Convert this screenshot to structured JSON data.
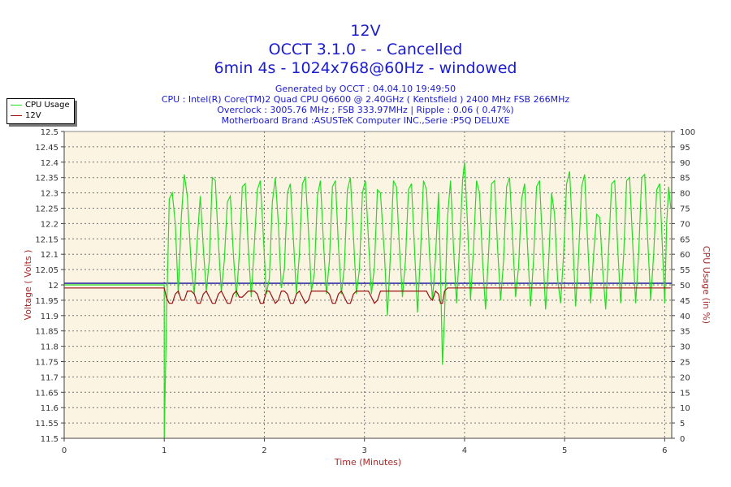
{
  "header": {
    "title": "12V",
    "line2": "OCCT 3.1.0 -  - Cancelled",
    "line3": "6min 4s - 1024x768@60Hz - windowed",
    "generated": "Generated by OCCT : 04.04.10 19:49:50",
    "cpu": "CPU : Intel(R) Core(TM)2 Quad CPU Q6600 @ 2.40GHz ( Kentsfield ) 2400 MHz FSB 266MHz",
    "overclock": "Overclock : 3005.76 MHz ; FSB 333.97MHz | Ripple : 0.06 ( 0.47%)",
    "motherboard": "Motherboard Brand :ASUSTeK Computer INC.,Serie :P5Q DELUXE"
  },
  "colors": {
    "cpu_line": "#22dd22",
    "volt_line": "#9a1111",
    "ref_line": "#1c1c9c",
    "plot_bg": "#fbf4e2",
    "title_text": "#1b1bcf",
    "axis_label_text": "#a52a2a"
  },
  "chart_data": {
    "type": "line",
    "xlabel": "Time (Minutes)",
    "ylabel": "Voltage ( Volts )",
    "y2label": "CPU Usage (in %)",
    "xlim": [
      0,
      6.07
    ],
    "ylim": [
      11.5,
      12.5
    ],
    "y2lim": [
      0,
      100
    ],
    "x_ticks": [
      "0",
      "1",
      "2",
      "3",
      "4",
      "5",
      "6"
    ],
    "y_ticks": [
      "11.5",
      "11.55",
      "11.6",
      "11.65",
      "11.7",
      "11.75",
      "11.8",
      "11.85",
      "11.9",
      "11.95",
      "12",
      "12.05",
      "12.1",
      "12.15",
      "12.2",
      "12.25",
      "12.3",
      "12.35",
      "12.4",
      "12.45",
      "12.5"
    ],
    "y2_ticks": [
      "0",
      "5",
      "10",
      "15",
      "20",
      "25",
      "30",
      "35",
      "40",
      "45",
      "50",
      "55",
      "60",
      "65",
      "70",
      "75",
      "80",
      "85",
      "90",
      "95",
      "100"
    ],
    "grid": true,
    "legend_position": "top-left",
    "reference_voltage": 12.0,
    "series": [
      {
        "name": "CPU Usage",
        "axis": "right",
        "points": [
          [
            0,
            50
          ],
          [
            1.0,
            50
          ],
          [
            1.0,
            0
          ],
          [
            1.02,
            35
          ],
          [
            1.05,
            78
          ],
          [
            1.08,
            80
          ],
          [
            1.11,
            70
          ],
          [
            1.14,
            47
          ],
          [
            1.17,
            72
          ],
          [
            1.2,
            86
          ],
          [
            1.23,
            79
          ],
          [
            1.27,
            56
          ],
          [
            1.3,
            47
          ],
          [
            1.33,
            65
          ],
          [
            1.36,
            79
          ],
          [
            1.39,
            62
          ],
          [
            1.42,
            48
          ],
          [
            1.45,
            58
          ],
          [
            1.48,
            85
          ],
          [
            1.51,
            84
          ],
          [
            1.54,
            64
          ],
          [
            1.57,
            48
          ],
          [
            1.6,
            58
          ],
          [
            1.63,
            77
          ],
          [
            1.66,
            79
          ],
          [
            1.69,
            60
          ],
          [
            1.72,
            46
          ],
          [
            1.75,
            60
          ],
          [
            1.78,
            82
          ],
          [
            1.81,
            83
          ],
          [
            1.84,
            62
          ],
          [
            1.87,
            46
          ],
          [
            1.9,
            63
          ],
          [
            1.93,
            81
          ],
          [
            1.96,
            84
          ],
          [
            1.99,
            66
          ],
          [
            2.02,
            47
          ],
          [
            2.05,
            52
          ],
          [
            2.08,
            77
          ],
          [
            2.11,
            85
          ],
          [
            2.14,
            70
          ],
          [
            2.17,
            49
          ],
          [
            2.2,
            55
          ],
          [
            2.23,
            80
          ],
          [
            2.26,
            83
          ],
          [
            2.29,
            65
          ],
          [
            2.32,
            47
          ],
          [
            2.35,
            60
          ],
          [
            2.38,
            83
          ],
          [
            2.41,
            85
          ],
          [
            2.44,
            68
          ],
          [
            2.47,
            48
          ],
          [
            2.5,
            54
          ],
          [
            2.53,
            79
          ],
          [
            2.56,
            84
          ],
          [
            2.59,
            64
          ],
          [
            2.62,
            47
          ],
          [
            2.65,
            58
          ],
          [
            2.68,
            82
          ],
          [
            2.71,
            84
          ],
          [
            2.74,
            63
          ],
          [
            2.77,
            47
          ],
          [
            2.8,
            56
          ],
          [
            2.83,
            81
          ],
          [
            2.86,
            85
          ],
          [
            2.89,
            66
          ],
          [
            2.92,
            47
          ],
          [
            2.95,
            55
          ],
          [
            2.98,
            80
          ],
          [
            3.01,
            84
          ],
          [
            3.04,
            65
          ],
          [
            3.07,
            47
          ],
          [
            3.1,
            56
          ],
          [
            3.13,
            81
          ],
          [
            3.16,
            80
          ],
          [
            3.2,
            60
          ],
          [
            3.23,
            40
          ],
          [
            3.26,
            60
          ],
          [
            3.29,
            84
          ],
          [
            3.32,
            82
          ],
          [
            3.35,
            62
          ],
          [
            3.38,
            46
          ],
          [
            3.41,
            58
          ],
          [
            3.44,
            81
          ],
          [
            3.47,
            83
          ],
          [
            3.5,
            62
          ],
          [
            3.53,
            41
          ],
          [
            3.56,
            60
          ],
          [
            3.59,
            84
          ],
          [
            3.62,
            81
          ],
          [
            3.65,
            60
          ],
          [
            3.68,
            45
          ],
          [
            3.71,
            59
          ],
          [
            3.74,
            80
          ],
          [
            3.76,
            55
          ],
          [
            3.78,
            24
          ],
          [
            3.8,
            40
          ],
          [
            3.83,
            72
          ],
          [
            3.86,
            84
          ],
          [
            3.89,
            62
          ],
          [
            3.92,
            44
          ],
          [
            3.95,
            62
          ],
          [
            3.98,
            84
          ],
          [
            4.0,
            90
          ],
          [
            4.03,
            70
          ],
          [
            4.06,
            45
          ],
          [
            4.09,
            62
          ],
          [
            4.12,
            84
          ],
          [
            4.15,
            80
          ],
          [
            4.18,
            58
          ],
          [
            4.21,
            42
          ],
          [
            4.24,
            60
          ],
          [
            4.27,
            83
          ],
          [
            4.3,
            84
          ],
          [
            4.33,
            62
          ],
          [
            4.36,
            45
          ],
          [
            4.39,
            58
          ],
          [
            4.42,
            82
          ],
          [
            4.45,
            85
          ],
          [
            4.48,
            65
          ],
          [
            4.51,
            46
          ],
          [
            4.54,
            56
          ],
          [
            4.57,
            78
          ],
          [
            4.6,
            83
          ],
          [
            4.63,
            62
          ],
          [
            4.66,
            43
          ],
          [
            4.69,
            58
          ],
          [
            4.72,
            82
          ],
          [
            4.75,
            84
          ],
          [
            4.78,
            63
          ],
          [
            4.81,
            42
          ],
          [
            4.84,
            57
          ],
          [
            4.87,
            80
          ],
          [
            4.9,
            73
          ],
          [
            4.93,
            52
          ],
          [
            4.96,
            44
          ],
          [
            4.99,
            60
          ],
          [
            5.02,
            83
          ],
          [
            5.05,
            87
          ],
          [
            5.08,
            66
          ],
          [
            5.11,
            43
          ],
          [
            5.14,
            60
          ],
          [
            5.17,
            82
          ],
          [
            5.2,
            86
          ],
          [
            5.23,
            64
          ],
          [
            5.26,
            44
          ],
          [
            5.29,
            60
          ],
          [
            5.32,
            73
          ],
          [
            5.35,
            72
          ],
          [
            5.38,
            55
          ],
          [
            5.41,
            42
          ],
          [
            5.44,
            62
          ],
          [
            5.47,
            83
          ],
          [
            5.5,
            84
          ],
          [
            5.53,
            62
          ],
          [
            5.56,
            44
          ],
          [
            5.59,
            60
          ],
          [
            5.62,
            84
          ],
          [
            5.65,
            85
          ],
          [
            5.68,
            64
          ],
          [
            5.71,
            44
          ],
          [
            5.74,
            60
          ],
          [
            5.77,
            85
          ],
          [
            5.8,
            86
          ],
          [
            5.83,
            65
          ],
          [
            5.86,
            45
          ],
          [
            5.89,
            60
          ],
          [
            5.92,
            81
          ],
          [
            5.95,
            83
          ],
          [
            5.98,
            60
          ],
          [
            6.0,
            44
          ],
          [
            6.02,
            70
          ],
          [
            6.04,
            82
          ],
          [
            6.06,
            75
          ]
        ]
      },
      {
        "name": "12V",
        "axis": "left",
        "points": [
          [
            0,
            11.99
          ],
          [
            1.0,
            11.99
          ],
          [
            1.02,
            11.96
          ],
          [
            1.05,
            11.94
          ],
          [
            1.08,
            11.94
          ],
          [
            1.11,
            11.97
          ],
          [
            1.14,
            11.98
          ],
          [
            1.17,
            11.95
          ],
          [
            1.2,
            11.95
          ],
          [
            1.23,
            11.98
          ],
          [
            1.27,
            11.98
          ],
          [
            1.3,
            11.97
          ],
          [
            1.33,
            11.94
          ],
          [
            1.36,
            11.94
          ],
          [
            1.39,
            11.97
          ],
          [
            1.42,
            11.98
          ],
          [
            1.45,
            11.96
          ],
          [
            1.48,
            11.94
          ],
          [
            1.51,
            11.94
          ],
          [
            1.54,
            11.97
          ],
          [
            1.57,
            11.98
          ],
          [
            1.6,
            11.96
          ],
          [
            1.63,
            11.94
          ],
          [
            1.66,
            11.94
          ],
          [
            1.69,
            11.97
          ],
          [
            1.72,
            11.98
          ],
          [
            1.75,
            11.96
          ],
          [
            1.78,
            11.96
          ],
          [
            1.81,
            11.97
          ],
          [
            1.84,
            11.98
          ],
          [
            1.87,
            11.98
          ],
          [
            1.9,
            11.98
          ],
          [
            1.93,
            11.97
          ],
          [
            1.96,
            11.94
          ],
          [
            1.99,
            11.94
          ],
          [
            2.02,
            11.98
          ],
          [
            2.05,
            11.98
          ],
          [
            2.08,
            11.96
          ],
          [
            2.11,
            11.94
          ],
          [
            2.14,
            11.95
          ],
          [
            2.17,
            11.98
          ],
          [
            2.2,
            11.98
          ],
          [
            2.23,
            11.97
          ],
          [
            2.26,
            11.94
          ],
          [
            2.29,
            11.94
          ],
          [
            2.32,
            11.97
          ],
          [
            2.35,
            11.98
          ],
          [
            2.38,
            11.96
          ],
          [
            2.41,
            11.94
          ],
          [
            2.44,
            11.95
          ],
          [
            2.47,
            11.98
          ],
          [
            2.5,
            11.98
          ],
          [
            2.53,
            11.98
          ],
          [
            2.56,
            11.98
          ],
          [
            2.59,
            11.98
          ],
          [
            2.62,
            11.98
          ],
          [
            2.65,
            11.97
          ],
          [
            2.68,
            11.94
          ],
          [
            2.71,
            11.94
          ],
          [
            2.74,
            11.97
          ],
          [
            2.77,
            11.98
          ],
          [
            2.8,
            11.96
          ],
          [
            2.83,
            11.94
          ],
          [
            2.86,
            11.94
          ],
          [
            2.89,
            11.97
          ],
          [
            2.92,
            11.98
          ],
          [
            2.95,
            11.98
          ],
          [
            2.98,
            11.98
          ],
          [
            3.01,
            11.98
          ],
          [
            3.04,
            11.98
          ],
          [
            3.07,
            11.96
          ],
          [
            3.1,
            11.94
          ],
          [
            3.13,
            11.95
          ],
          [
            3.16,
            11.98
          ],
          [
            3.2,
            11.98
          ],
          [
            3.23,
            11.98
          ],
          [
            3.26,
            11.98
          ],
          [
            3.29,
            11.98
          ],
          [
            3.32,
            11.98
          ],
          [
            3.35,
            11.98
          ],
          [
            3.38,
            11.98
          ],
          [
            3.41,
            11.98
          ],
          [
            3.44,
            11.98
          ],
          [
            3.47,
            11.98
          ],
          [
            3.5,
            11.98
          ],
          [
            3.53,
            11.98
          ],
          [
            3.56,
            11.98
          ],
          [
            3.59,
            11.98
          ],
          [
            3.62,
            11.98
          ],
          [
            3.65,
            11.96
          ],
          [
            3.68,
            11.95
          ],
          [
            3.71,
            11.98
          ],
          [
            3.74,
            11.97
          ],
          [
            3.76,
            11.94
          ],
          [
            3.78,
            11.94
          ],
          [
            3.8,
            11.98
          ],
          [
            3.83,
            11.99
          ],
          [
            6.06,
            11.99
          ]
        ]
      }
    ]
  }
}
